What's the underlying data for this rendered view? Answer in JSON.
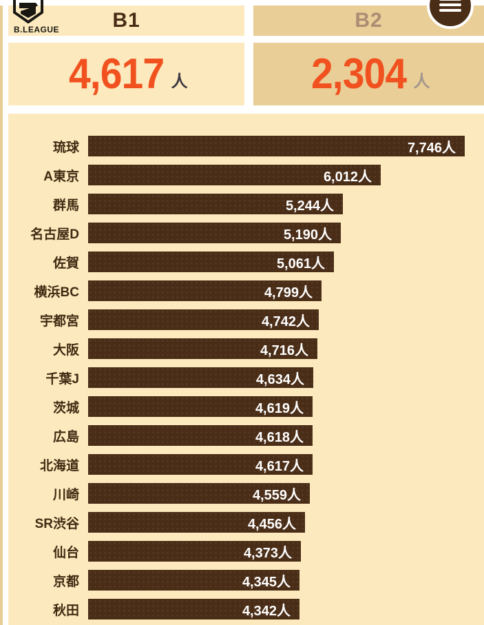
{
  "header": {
    "logo_text": "B.LEAGUE",
    "tabs": [
      {
        "id": "b1",
        "label": "B1",
        "active": true
      },
      {
        "id": "b2",
        "label": "B2",
        "active": false
      }
    ]
  },
  "stats": [
    {
      "league": "B1",
      "value": "4,617",
      "unit": "人"
    },
    {
      "league": "B2",
      "value": "2,304",
      "unit": "人"
    }
  ],
  "chart_data": {
    "type": "bar",
    "orientation": "horizontal",
    "title": "",
    "unit": "人",
    "xlim": [
      0,
      7746
    ],
    "grid": false,
    "categories": [
      "琉球",
      "A東京",
      "群馬",
      "名古屋D",
      "佐賀",
      "横浜BC",
      "宇都宮",
      "大阪",
      "千葉J",
      "茨城",
      "広島",
      "北海道",
      "川崎",
      "SR渋谷",
      "仙台",
      "京都",
      "秋田"
    ],
    "values": [
      7746,
      6012,
      5244,
      5190,
      5061,
      4799,
      4742,
      4716,
      4634,
      4619,
      4618,
      4617,
      4559,
      4456,
      4373,
      4345,
      4342
    ],
    "value_labels": [
      "7,746人",
      "6,012人",
      "5,244人",
      "5,190人",
      "5,061人",
      "4,799人",
      "4,742人",
      "4,716人",
      "4,634人",
      "4,619人",
      "4,618人",
      "4,617人",
      "4,559人",
      "4,456人",
      "4,373人",
      "4,345人",
      "4,342人"
    ]
  },
  "colors": {
    "accent_orange": "#f1511f",
    "bar_brown": "#4a2d17",
    "cream": "#fce9bd",
    "tan": "#e9ce97",
    "inactive_tab_text": "#ae8c74",
    "label_brown": "#3f2a12"
  }
}
